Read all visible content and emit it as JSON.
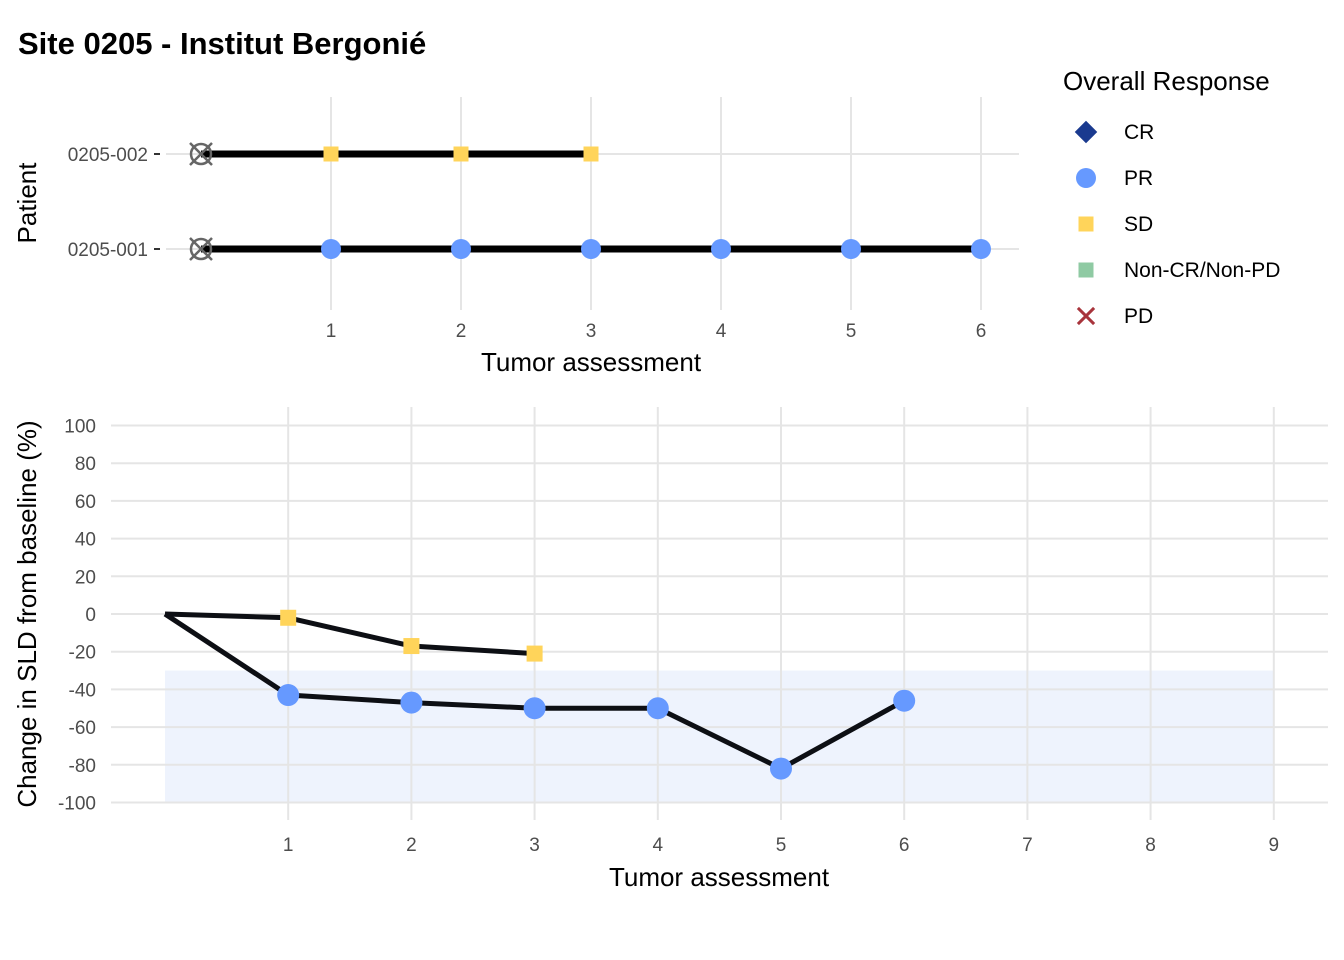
{
  "title": "Site 0205 - Institut Bergonié",
  "legend": {
    "title": "Overall Response",
    "placement": "top-right",
    "items": [
      {
        "label": "CR",
        "shape": "diamond",
        "color": "#1a3a8f"
      },
      {
        "label": "PR",
        "shape": "circle",
        "color": "#6699ff"
      },
      {
        "label": "SD",
        "shape": "square",
        "color": "#ffd45a"
      },
      {
        "label": "Non-CR/Non-PD",
        "shape": "square",
        "color": "#8fcaa3"
      },
      {
        "label": "PD",
        "shape": "cross",
        "color": "#a8343c"
      }
    ]
  },
  "chart_data": [
    {
      "type": "line",
      "subtype": "swimmer",
      "xlabel": "Tumor assessment",
      "ylabel": "Patient",
      "x_ticks": [
        1,
        2,
        3,
        4,
        5,
        6
      ],
      "xlim": [
        0,
        6.3
      ],
      "grid": true,
      "baseline_marker": "crossed-circle",
      "series": [
        {
          "name": "0205-002",
          "points": [
            {
              "x": 0,
              "response": null
            },
            {
              "x": 1,
              "response": "SD"
            },
            {
              "x": 2,
              "response": "SD"
            },
            {
              "x": 3,
              "response": "SD"
            }
          ]
        },
        {
          "name": "0205-001",
          "points": [
            {
              "x": 0,
              "response": null
            },
            {
              "x": 1,
              "response": "PR"
            },
            {
              "x": 2,
              "response": "PR"
            },
            {
              "x": 3,
              "response": "PR"
            },
            {
              "x": 4,
              "response": "PR"
            },
            {
              "x": 5,
              "response": "PR"
            },
            {
              "x": 6,
              "response": "PR"
            }
          ]
        }
      ]
    },
    {
      "type": "line",
      "subtype": "spider",
      "xlabel": "Tumor assessment",
      "ylabel": "Change in SLD from baseline (%)",
      "x_ticks": [
        1,
        2,
        3,
        4,
        5,
        6,
        7,
        8,
        9
      ],
      "y_ticks": [
        100,
        80,
        60,
        40,
        20,
        0,
        -20,
        -40,
        -60,
        -80,
        -100
      ],
      "ylim": [
        -100,
        100
      ],
      "xlim": [
        0,
        9
      ],
      "grid": true,
      "shaded_band": {
        "y_from": -100,
        "y_to": -30,
        "x_from": 0,
        "x_to": 9,
        "color": "#eef3fd"
      },
      "series": [
        {
          "name": "0205-002",
          "points": [
            {
              "x": 0,
              "y": 0,
              "response": null
            },
            {
              "x": 1,
              "y": -2,
              "response": "SD"
            },
            {
              "x": 2,
              "y": -17,
              "response": "SD"
            },
            {
              "x": 3,
              "y": -21,
              "response": "SD"
            }
          ]
        },
        {
          "name": "0205-001",
          "points": [
            {
              "x": 0,
              "y": 0,
              "response": null
            },
            {
              "x": 1,
              "y": -43,
              "response": "PR"
            },
            {
              "x": 2,
              "y": -47,
              "response": "PR"
            },
            {
              "x": 3,
              "y": -50,
              "response": "PR"
            },
            {
              "x": 4,
              "y": -50,
              "response": "PR"
            },
            {
              "x": 5,
              "y": -82,
              "response": "PR"
            },
            {
              "x": 6,
              "y": -46,
              "response": "PR"
            }
          ]
        }
      ]
    }
  ]
}
